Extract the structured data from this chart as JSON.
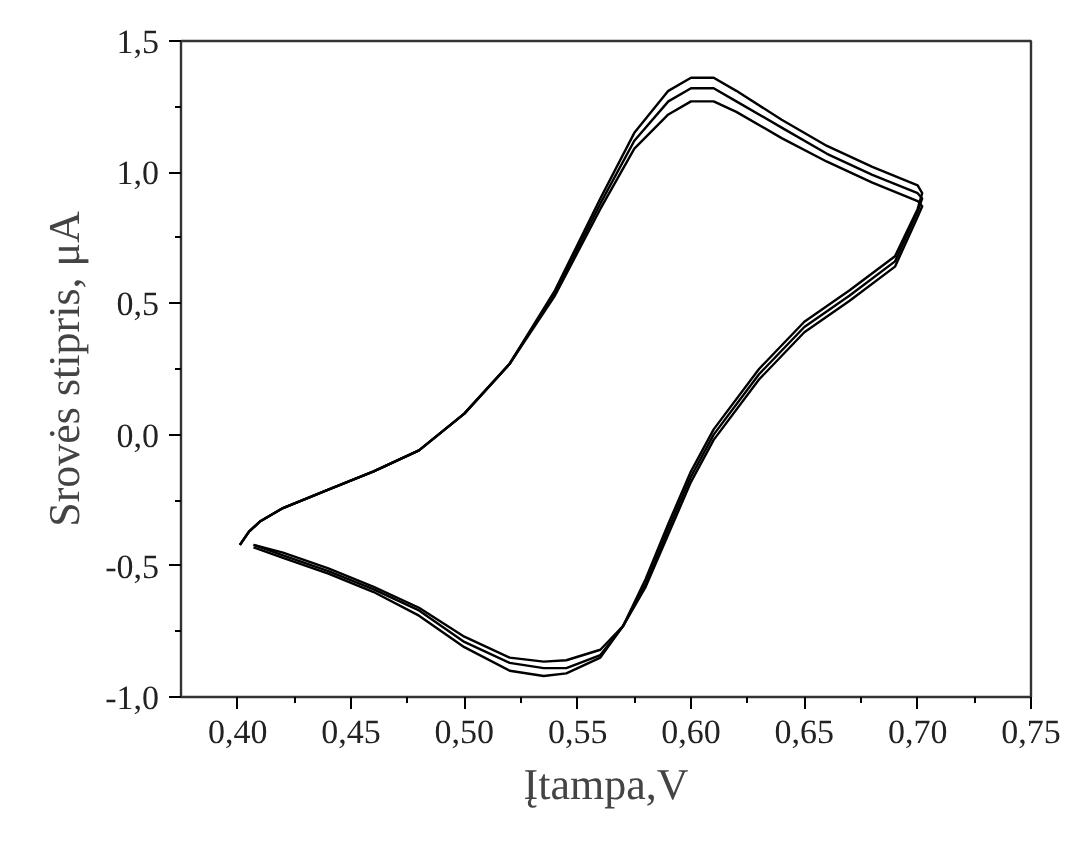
{
  "chart_data": {
    "type": "line",
    "xlabel": "Įtampa,V",
    "ylabel": "Srovės stipris, μA",
    "xlim": [
      0.375,
      0.75
    ],
    "ylim": [
      -1.0,
      1.5
    ],
    "xticks": [
      {
        "value": 0.4,
        "label": "0,40"
      },
      {
        "value": 0.425,
        "label": null
      },
      {
        "value": 0.45,
        "label": "0,45"
      },
      {
        "value": 0.475,
        "label": null
      },
      {
        "value": 0.5,
        "label": "0,50"
      },
      {
        "value": 0.525,
        "label": null
      },
      {
        "value": 0.55,
        "label": "0,55"
      },
      {
        "value": 0.575,
        "label": null
      },
      {
        "value": 0.6,
        "label": "0,60"
      },
      {
        "value": 0.625,
        "label": null
      },
      {
        "value": 0.65,
        "label": "0,65"
      },
      {
        "value": 0.675,
        "label": null
      },
      {
        "value": 0.7,
        "label": "0,70"
      },
      {
        "value": 0.725,
        "label": null
      },
      {
        "value": 0.75,
        "label": "0,75"
      }
    ],
    "yticks": [
      {
        "value": -1.0,
        "label": "-1,0"
      },
      {
        "value": -0.75,
        "label": null
      },
      {
        "value": -0.5,
        "label": "-0,5"
      },
      {
        "value": -0.25,
        "label": null
      },
      {
        "value": 0.0,
        "label": "0,0"
      },
      {
        "value": 0.25,
        "label": null
      },
      {
        "value": 0.5,
        "label": "0,5"
      },
      {
        "value": 0.75,
        "label": null
      },
      {
        "value": 1.0,
        "label": "1,0"
      },
      {
        "value": 1.25,
        "label": null
      },
      {
        "value": 1.5,
        "label": "1,5"
      }
    ],
    "grid": false,
    "marker": "none",
    "line_style": "solid",
    "x": [
      0.401,
      0.405,
      0.41,
      0.42,
      0.44,
      0.46,
      0.48,
      0.5,
      0.52,
      0.54,
      0.56,
      0.575,
      0.59,
      0.6,
      0.61,
      0.62,
      0.64,
      0.66,
      0.68,
      0.7,
      0.702,
      0.7,
      0.69,
      0.67,
      0.65,
      0.63,
      0.61,
      0.6,
      0.59,
      0.58,
      0.57,
      0.56,
      0.545,
      0.535,
      0.52,
      0.5,
      0.48,
      0.46,
      0.44,
      0.42,
      0.407
    ],
    "series": [
      {
        "color": "#000000",
        "values": [
          -0.42,
          -0.37,
          -0.33,
          -0.28,
          -0.21,
          -0.14,
          -0.06,
          0.08,
          0.27,
          0.55,
          0.9,
          1.15,
          1.31,
          1.36,
          1.36,
          1.31,
          1.2,
          1.1,
          1.02,
          0.95,
          0.92,
          0.86,
          0.68,
          0.55,
          0.43,
          0.25,
          0.02,
          -0.14,
          -0.34,
          -0.55,
          -0.73,
          -0.85,
          -0.91,
          -0.92,
          -0.9,
          -0.81,
          -0.69,
          -0.6,
          -0.53,
          -0.47,
          -0.43
        ]
      },
      {
        "color": "#000000",
        "values": [
          -0.42,
          -0.37,
          -0.33,
          -0.28,
          -0.21,
          -0.14,
          -0.06,
          0.08,
          0.27,
          0.54,
          0.88,
          1.12,
          1.27,
          1.32,
          1.32,
          1.27,
          1.17,
          1.07,
          0.99,
          0.92,
          0.9,
          0.85,
          0.66,
          0.53,
          0.41,
          0.23,
          0.0,
          -0.16,
          -0.36,
          -0.57,
          -0.73,
          -0.84,
          -0.89,
          -0.89,
          -0.87,
          -0.79,
          -0.67,
          -0.59,
          -0.52,
          -0.46,
          -0.42
        ]
      },
      {
        "color": "#000000",
        "values": [
          -0.42,
          -0.37,
          -0.33,
          -0.28,
          -0.21,
          -0.14,
          -0.06,
          0.08,
          0.27,
          0.53,
          0.86,
          1.09,
          1.22,
          1.27,
          1.27,
          1.23,
          1.13,
          1.04,
          0.96,
          0.89,
          0.87,
          0.83,
          0.64,
          0.51,
          0.39,
          0.21,
          -0.02,
          -0.18,
          -0.38,
          -0.58,
          -0.73,
          -0.82,
          -0.86,
          -0.865,
          -0.85,
          -0.77,
          -0.66,
          -0.58,
          -0.51,
          -0.45,
          -0.42
        ]
      }
    ]
  }
}
